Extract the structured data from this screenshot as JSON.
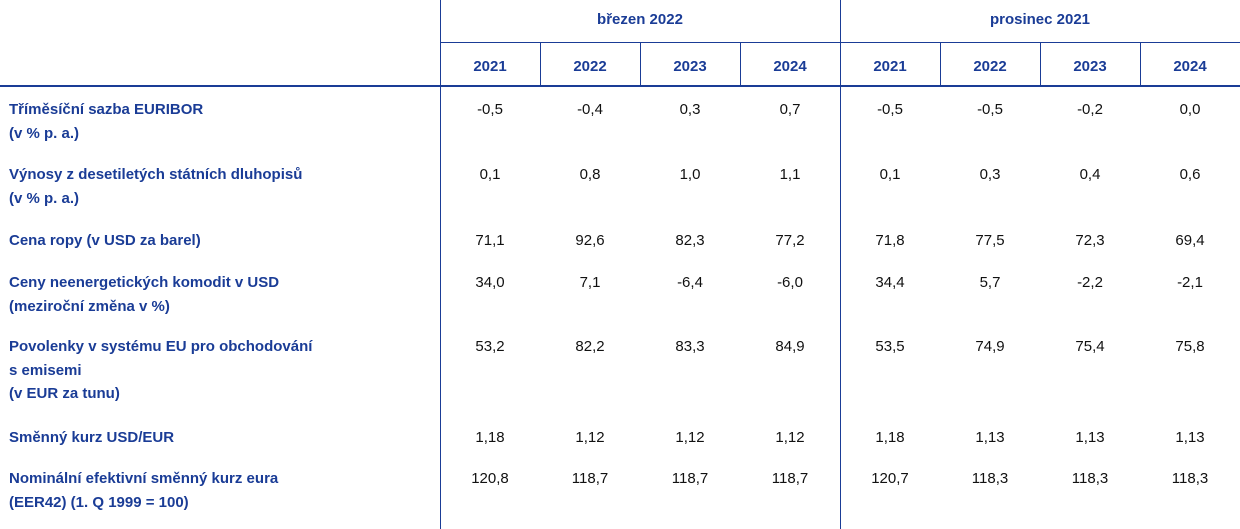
{
  "header": {
    "groups": [
      "březen 2022",
      "prosinec 2021"
    ],
    "years": [
      "2021",
      "2022",
      "2023",
      "2024",
      "2021",
      "2022",
      "2023",
      "2024"
    ]
  },
  "rows": [
    {
      "label": [
        "Tříměsíční sazba EURIBOR",
        "(v % p. a.)"
      ],
      "values": [
        "-0,5",
        "-0,4",
        "0,3",
        "0,7",
        "-0,5",
        "-0,5",
        "-0,2",
        "0,0"
      ]
    },
    {
      "label": [
        "Výnosy z desetiletých státních dluhopisů",
        "(v % p. a.)"
      ],
      "values": [
        "0,1",
        "0,8",
        "1,0",
        "1,1",
        "0,1",
        "0,3",
        "0,4",
        "0,6"
      ]
    },
    {
      "label": [
        "Cena ropy (v USD za barel)"
      ],
      "values": [
        "71,1",
        "92,6",
        "82,3",
        "77,2",
        "71,8",
        "77,5",
        "72,3",
        "69,4"
      ]
    },
    {
      "label": [
        "Ceny neenergetických komodit v USD",
        "(meziroční změna v %)"
      ],
      "values": [
        "34,0",
        "7,1",
        "-6,4",
        "-6,0",
        "34,4",
        "5,7",
        "-2,2",
        "-2,1"
      ]
    },
    {
      "label": [
        "Povolenky v systému EU pro obchodování",
        "s emisemi",
        "(v EUR za tunu)"
      ],
      "values": [
        "53,2",
        "82,2",
        "83,3",
        "84,9",
        "53,5",
        "74,9",
        "75,4",
        "75,8"
      ]
    },
    {
      "label": [
        "Směnný kurz USD/EUR"
      ],
      "values": [
        "1,18",
        "1,12",
        "1,12",
        "1,12",
        "1,18",
        "1,13",
        "1,13",
        "1,13"
      ]
    },
    {
      "label": [
        "Nominální efektivní směnný kurz eura",
        "(EER42) (1. Q 1999 = 100)"
      ],
      "values": [
        "120,8",
        "118,7",
        "118,7",
        "118,7",
        "120,7",
        "118,3",
        "118,3",
        "118,3"
      ]
    }
  ]
}
